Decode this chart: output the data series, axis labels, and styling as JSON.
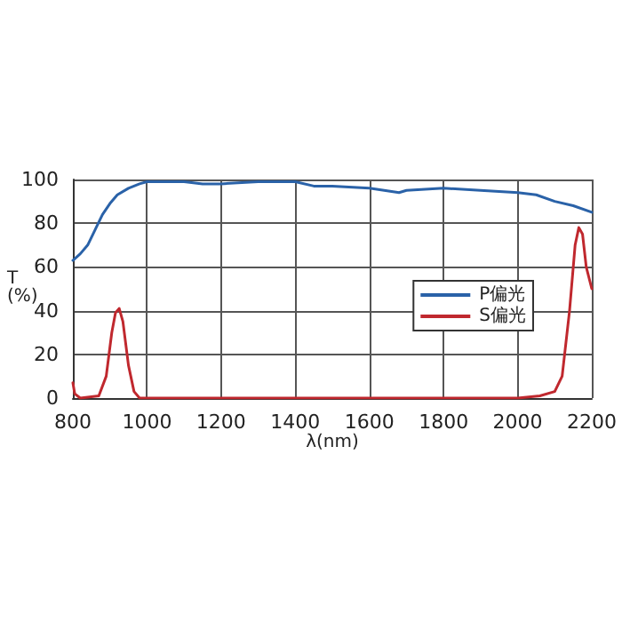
{
  "chart_data": {
    "type": "line",
    "xlabel": "λ(nm)",
    "ylabel": "T\n(%)",
    "xlim": [
      800,
      2200
    ],
    "xticks": [
      800,
      1000,
      1200,
      1400,
      1600,
      1800,
      2000,
      2200
    ],
    "ylim": [
      0,
      100
    ],
    "yticks": [
      0,
      20,
      40,
      60,
      80,
      100
    ],
    "grid": true,
    "legend": "right",
    "marker": "none",
    "line_style": "solid",
    "series": [
      {
        "name": "P偏光",
        "color": "#2a62a8",
        "x": [
          800,
          820,
          840,
          860,
          880,
          900,
          920,
          950,
          980,
          1000,
          1100,
          1150,
          1200,
          1300,
          1400,
          1450,
          1500,
          1600,
          1680,
          1700,
          1800,
          1900,
          2000,
          2050,
          2100,
          2150,
          2200
        ],
        "values": [
          63,
          66,
          70,
          77,
          84,
          89,
          93,
          96,
          98,
          99,
          99,
          98,
          98,
          99,
          99,
          97,
          97,
          96,
          94,
          95,
          96,
          95,
          94,
          93,
          90,
          88,
          85
        ]
      },
      {
        "name": "S偏光",
        "color": "#c0282e",
        "x": [
          800,
          805,
          820,
          870,
          890,
          905,
          915,
          925,
          935,
          950,
          965,
          980,
          1000,
          2000,
          2060,
          2100,
          2120,
          2140,
          2155,
          2165,
          2175,
          2185,
          2200
        ],
        "values": [
          7,
          2,
          0,
          1,
          10,
          30,
          39,
          41,
          35,
          15,
          3,
          0,
          0,
          0,
          1,
          3,
          10,
          40,
          70,
          78,
          75,
          60,
          50
        ]
      }
    ]
  }
}
